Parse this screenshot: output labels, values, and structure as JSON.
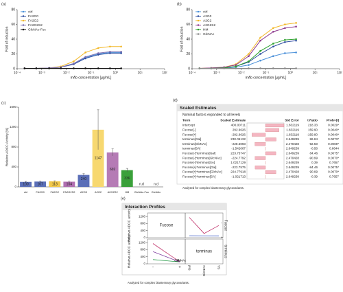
{
  "chart_data": [
    {
      "label": "(a)",
      "type": "line",
      "xlabel": "mAb concentration [µg/mL]",
      "ylabel": "Fold of induction",
      "xlog": true,
      "xlim": [
        0.0001,
        100
      ],
      "xticks": [
        {
          "value": 0.0001,
          "label": "10⁻⁴"
        },
        {
          "value": 0.001,
          "label": "10⁻³"
        },
        {
          "value": 0.01,
          "label": "10⁻²"
        },
        {
          "value": 0.1,
          "label": "10⁻¹"
        },
        {
          "value": 1,
          "label": "10⁰"
        },
        {
          "value": 10,
          "label": "10¹"
        },
        {
          "value": 100,
          "label": "10²"
        }
      ],
      "ylim": [
        0,
        80
      ],
      "yticks": [
        0,
        20,
        40,
        60,
        80
      ],
      "legend": "upper left",
      "x": [
        0.0002,
        0.0006,
        0.002,
        0.006,
        0.02,
        0.06,
        0.2,
        0.6,
        1.7
      ],
      "series": [
        {
          "name": "ctrl",
          "color": "#4a90d9",
          "values": [
            0.5,
            0.5,
            1,
            2,
            7,
            15,
            20,
            22,
            22
          ]
        },
        {
          "name": "FA2G0",
          "color": "#2e4fa0",
          "values": [
            0.5,
            0.5,
            1,
            2,
            6,
            14,
            19,
            21,
            21
          ]
        },
        {
          "name": "FA2G2",
          "color": "#f2b829",
          "values": [
            0.5,
            0.5,
            1,
            3,
            10,
            22,
            28,
            30,
            30
          ]
        },
        {
          "name": "FA2G2S2",
          "color": "#7d6fb0",
          "values": [
            0.5,
            0.5,
            1,
            2,
            7,
            16,
            21,
            23,
            23
          ]
        },
        {
          "name": "GlcNAc-Fuc",
          "color": "#111111",
          "values": [
            0.5,
            0.5,
            0.5,
            0.5,
            0.5,
            0.5,
            0.5,
            0.5,
            0.5
          ]
        }
      ]
    },
    {
      "label": "(b)",
      "type": "line",
      "xlabel": "mAb concentration [µg/mL]",
      "ylabel": "Fold of induction",
      "xlog": true,
      "xlim": [
        0.0001,
        100
      ],
      "xticks": [
        {
          "value": 0.0001,
          "label": "10⁻⁴"
        },
        {
          "value": 0.001,
          "label": "10⁻³"
        },
        {
          "value": 0.01,
          "label": "10⁻²"
        },
        {
          "value": 0.1,
          "label": "10⁻¹"
        },
        {
          "value": 1,
          "label": "10⁰"
        },
        {
          "value": 10,
          "label": "10¹"
        },
        {
          "value": 100,
          "label": "10²"
        }
      ],
      "ylim": [
        0,
        80
      ],
      "yticks": [
        0,
        20,
        40,
        60,
        80
      ],
      "legend": "upper left",
      "x": [
        0.0002,
        0.0006,
        0.002,
        0.006,
        0.02,
        0.06,
        0.2,
        0.6,
        1.7
      ],
      "series": [
        {
          "name": "ctrl",
          "color": "#4a90d9",
          "values": [
            0.5,
            0.5,
            0.8,
            2,
            5,
            11,
            17,
            21,
            22
          ]
        },
        {
          "name": "A2G0",
          "color": "#2e4fa0",
          "values": [
            0.5,
            0.5,
            1,
            3,
            9,
            20,
            30,
            36,
            38
          ]
        },
        {
          "name": "A2G2",
          "color": "#f2b829",
          "values": [
            0.5,
            1,
            2,
            6,
            20,
            42,
            55,
            60,
            62
          ]
        },
        {
          "name": "A2G2S2",
          "color": "#8e3a8e",
          "values": [
            0.5,
            1,
            2,
            5,
            17,
            38,
            50,
            55,
            57
          ]
        },
        {
          "name": "HM",
          "color": "#2ca02c",
          "values": [
            0.5,
            0.5,
            1,
            3,
            10,
            24,
            34,
            39,
            40
          ]
        },
        {
          "name": "GlcNAc",
          "color": "#888888",
          "values": [
            0.5,
            0.5,
            0.5,
            0.5,
            0.5,
            0.5,
            0.5,
            0.5,
            0.5
          ]
        }
      ]
    },
    {
      "label": "(c)",
      "type": "bar",
      "ylabel": "Relative ADCC Activity [%]",
      "categories": [
        "ctrl",
        "FA2G0",
        "FA2G2",
        "FA2G2S2",
        "A2G0",
        "A2G2",
        "A2G2S2",
        "HM",
        "GlcNAc-Fuc",
        "GlcNAc"
      ],
      "values": [
        100,
        107,
        113,
        104,
        240,
        1147,
        692,
        336,
        null,
        null
      ],
      "value_labels": [
        "100",
        "107",
        "113",
        "104",
        "240",
        "1147",
        "692",
        "336",
        "n.d",
        "n.d"
      ],
      "errors": [
        10,
        10,
        10,
        10,
        25,
        400,
        70,
        35,
        null,
        null
      ],
      "colors": [
        "#5b6fb8",
        "#5b6fb8",
        "#f2c84b",
        "#b06fb0",
        "#5b6fb8",
        "#f7d870",
        "#b57bb5",
        "#3aa03a",
        "#cccccc",
        "#cccccc"
      ],
      "ylim": [
        0,
        1600
      ],
      "yticks": [
        0,
        400,
        800,
        1200,
        1600
      ]
    },
    {
      "label": "(e)",
      "type": "interaction",
      "title": "Interaction Profiles",
      "ylabel": "Relative ADCC activity",
      "factors": [
        "Fucose",
        "terminus"
      ],
      "terminus_levels": [
        "Gal",
        "GlcNAc",
        "SA"
      ],
      "terminus_colors": [
        "#c0306a",
        "#2a9d4a",
        "#8040a0"
      ],
      "series": [
        {
          "name": "-",
          "color": "#c0306a",
          "values": [
            1147,
            240,
            692
          ]
        },
        {
          "name": "+",
          "color": "#3050c0",
          "values": [
            113,
            107,
            104
          ]
        }
      ],
      "ylim": [
        0,
        1400
      ],
      "yticks": [
        0,
        400,
        800,
        1200
      ],
      "note": "Analyzed for complex biantennary glycovariants."
    }
  ],
  "table": {
    "label": "(d)",
    "title": "Scaled Estimates",
    "subtitle": "Nominal factors expanded to all levels",
    "columns": [
      "Term",
      "Scaled Estimate",
      "Std Error",
      "t Ratio",
      "Prob>|t|"
    ],
    "rows": [
      [
        "Intercept",
        "400.00711",
        "1.832119",
        "218.33",
        "0.0029*"
      ],
      [
        "Fucose[-]",
        "292.9626",
        "1.832119",
        "159.90",
        "0.0040*"
      ],
      [
        "Fucose[+]",
        "-292.9626",
        "1.832119",
        "-159.90",
        "0.0040*"
      ],
      [
        "terminus[Gal]",
        "230.05132",
        "2.649239",
        "86.84",
        "0.0073*"
      ],
      [
        "terminus[GlcNAc]",
        "-228.5093",
        "2.470428",
        "-92.50",
        "0.0069*"
      ],
      [
        "terminus[SA]",
        "-1.542067",
        "2.649239",
        "-0.58",
        "0.6644"
      ],
      [
        "Fucose[-]*terminus[Gal]",
        "223.75747",
        "2.649239",
        "84.46",
        "0.0075*"
      ],
      [
        "Fucose[-]*terminus[GlcNAc]",
        "-224.7792",
        "2.470428",
        "-90.99",
        "0.0070*"
      ],
      [
        "Fucose[-]*terminus[SA]",
        "1.0217129",
        "2.649239",
        "0.39",
        "0.7657"
      ],
      [
        "Fucose[+]*terminus[Gal]",
        "-223.7575",
        "2.649239",
        "-84.46",
        "0.0075*"
      ],
      [
        "Fucose[+]*terminus[GlcNAc]",
        "224.77918",
        "2.470428",
        "90.99",
        "0.0070*"
      ],
      [
        "Fucose[+]*terminus[SA]",
        "-1.021713",
        "2.649239",
        "-0.39",
        "0.7657"
      ]
    ],
    "note": "Analyzed for complex biantennary glycovariants."
  }
}
